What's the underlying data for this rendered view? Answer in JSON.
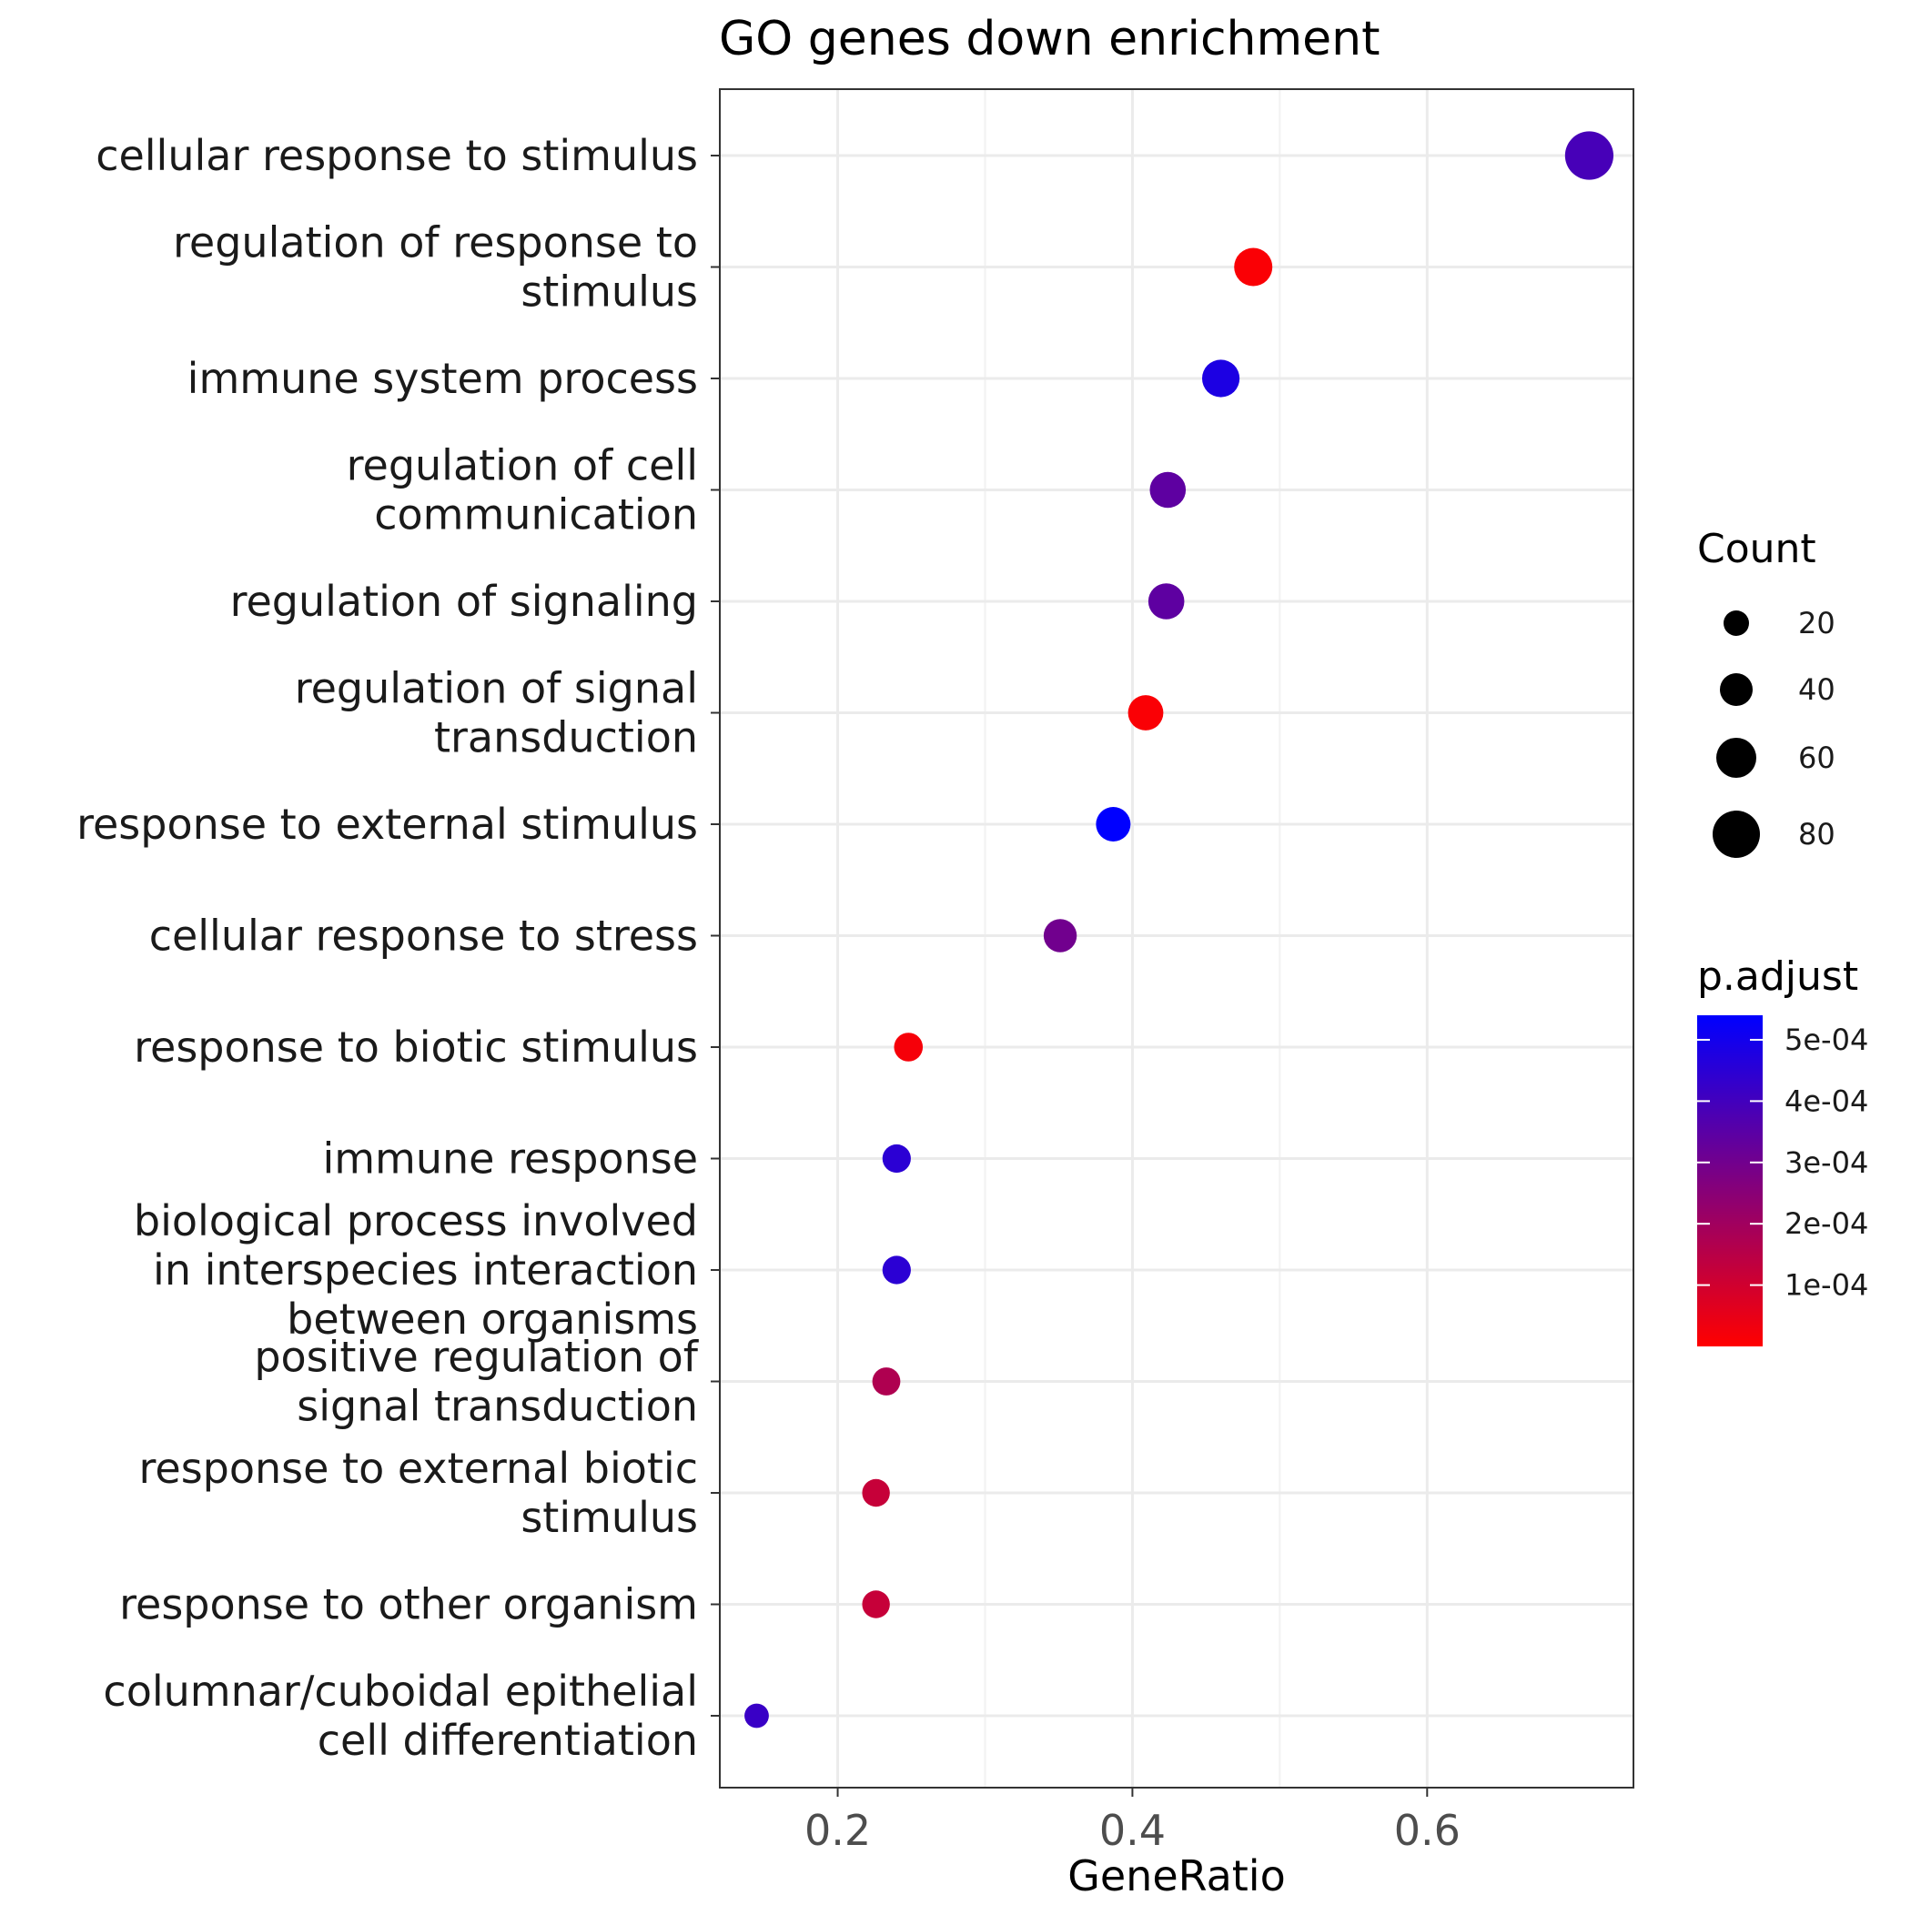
{
  "chart_data": {
    "type": "scatter",
    "title": "GO genes down enrichment",
    "xlabel": "GeneRatio",
    "ylabel": "",
    "xlim": [
      0.12,
      0.74
    ],
    "xticks": [
      0.2,
      0.4,
      0.6
    ],
    "xtick_labels": [
      "0.2",
      "0.4",
      "0.6"
    ],
    "grid": true,
    "legend_position": "right",
    "categories": [
      "cellular response to stimulus",
      "regulation of response to\nstimulus",
      "immune system process",
      "regulation of cell\ncommunication",
      "regulation of signaling",
      "regulation of signal\ntransduction",
      "response to external stimulus",
      "cellular response to stress",
      "response to biotic stimulus",
      "immune response",
      "biological process involved\nin interspecies interaction\nbetween organisms",
      "positive regulation of\nsignal transduction",
      "response to external biotic\nstimulus",
      "response to other organism",
      "columnar/cuboidal epithelial\ncell differentiation"
    ],
    "points": [
      {
        "gene_ratio": 0.71,
        "count": 83,
        "p_adjust": 0.00039
      },
      {
        "gene_ratio": 0.482,
        "count": 55,
        "p_adjust": 1e-05
      },
      {
        "gene_ratio": 0.46,
        "count": 53,
        "p_adjust": 0.00048
      },
      {
        "gene_ratio": 0.424,
        "count": 49,
        "p_adjust": 0.00034
      },
      {
        "gene_ratio": 0.423,
        "count": 49,
        "p_adjust": 0.00034
      },
      {
        "gene_ratio": 0.409,
        "count": 47,
        "p_adjust": 1e-05
      },
      {
        "gene_ratio": 0.387,
        "count": 45,
        "p_adjust": 0.00054
      },
      {
        "gene_ratio": 0.351,
        "count": 41,
        "p_adjust": 0.0003
      },
      {
        "gene_ratio": 0.248,
        "count": 29,
        "p_adjust": 2e-05
      },
      {
        "gene_ratio": 0.24,
        "count": 28,
        "p_adjust": 0.00045
      },
      {
        "gene_ratio": 0.24,
        "count": 28,
        "p_adjust": 0.00045
      },
      {
        "gene_ratio": 0.233,
        "count": 27,
        "p_adjust": 0.00017
      },
      {
        "gene_ratio": 0.226,
        "count": 26,
        "p_adjust": 0.00012
      },
      {
        "gene_ratio": 0.226,
        "count": 26,
        "p_adjust": 0.00012
      },
      {
        "gene_ratio": 0.145,
        "count": 17,
        "p_adjust": 0.00042
      }
    ],
    "legend_size": {
      "title": "Count",
      "values": [
        20,
        40,
        60,
        80
      ],
      "labels": [
        "20",
        "40",
        "60",
        "80"
      ]
    },
    "legend_color": {
      "title": "p.adjust",
      "min": 0.0,
      "max": 0.00054,
      "ticks": [
        0.0001,
        0.0002,
        0.0003,
        0.0004,
        0.0005
      ],
      "tick_labels": [
        "1e-04",
        "2e-04",
        "3e-04",
        "4e-04",
        "5e-04"
      ],
      "low_color": "#FF0000",
      "high_color": "#0000FF"
    }
  }
}
